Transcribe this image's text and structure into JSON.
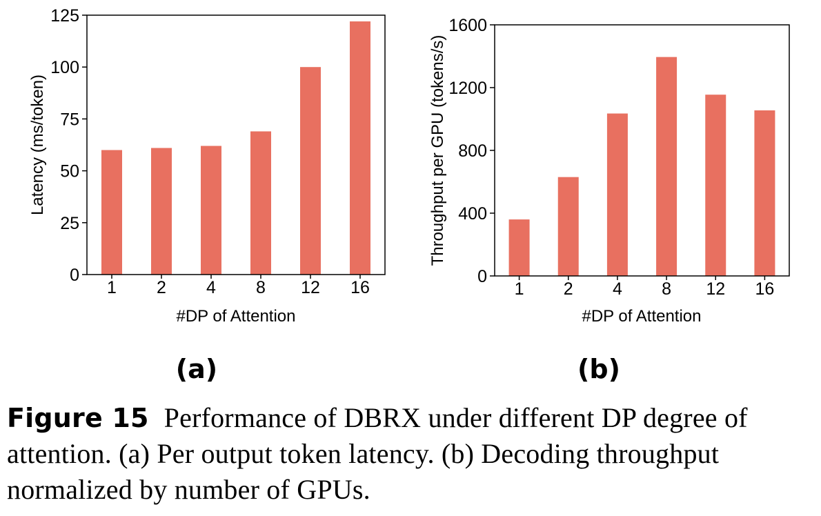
{
  "chart_data": [
    {
      "type": "bar",
      "panel_label": "(a)",
      "categories": [
        "1",
        "2",
        "4",
        "8",
        "12",
        "16"
      ],
      "values": [
        60,
        61,
        62,
        69,
        100,
        122
      ],
      "xlabel": "#DP of Attention",
      "ylabel": "Latency (ms/token)",
      "ylim": [
        0,
        125
      ],
      "yticks": [
        "0",
        "25",
        "50",
        "75",
        "100",
        "125"
      ],
      "grid": false,
      "bar_color": "#E87060"
    },
    {
      "type": "bar",
      "panel_label": "(b)",
      "categories": [
        "1",
        "2",
        "4",
        "8",
        "12",
        "16"
      ],
      "values": [
        360,
        630,
        1035,
        1395,
        1155,
        1055
      ],
      "xlabel": "#DP of Attention",
      "ylabel": "Throughput per GPU (tokens/s)",
      "ylim": [
        0,
        1600
      ],
      "yticks": [
        "0",
        "400",
        "800",
        "1200",
        "1600"
      ],
      "grid": false,
      "bar_color": "#E87060"
    }
  ],
  "caption": {
    "label": "Figure 15",
    "text": "Performance of DBRX under different DP degree of attention. (a) Per output token latency. (b) Decoding throughput normalized by number of GPUs."
  }
}
